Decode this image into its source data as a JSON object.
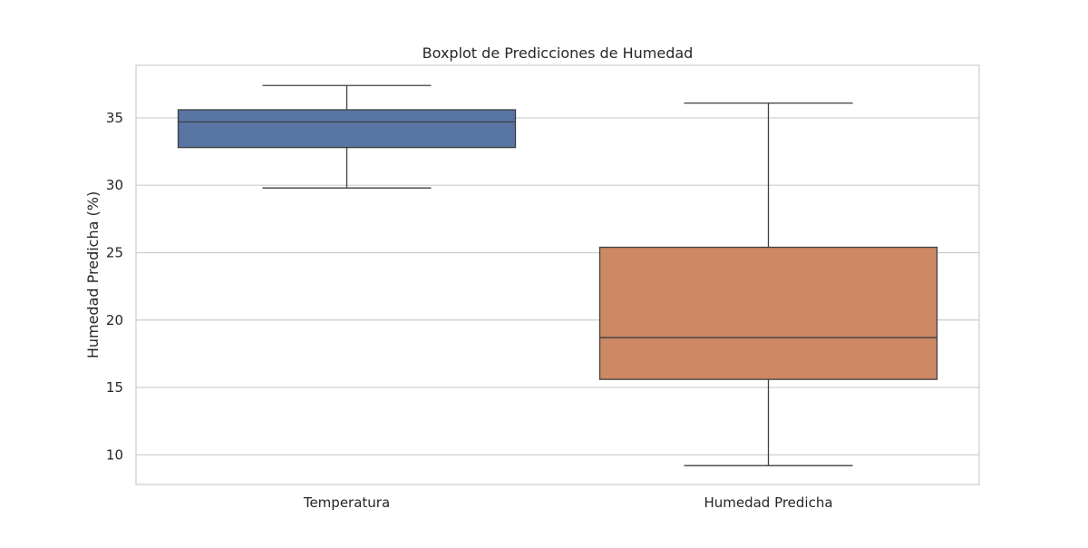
{
  "chart_data": {
    "type": "box",
    "title": "Boxplot de Predicciones de Humedad",
    "xlabel": "",
    "ylabel": "Humedad Predicha (%)",
    "ylim": [
      7.8,
      38.9
    ],
    "yticks": [
      10,
      15,
      20,
      25,
      30,
      35
    ],
    "grid": true,
    "categories": [
      "Temperatura",
      "Humedad Predicha"
    ],
    "boxes": [
      {
        "category": "Temperatura",
        "whisker_low": 29.8,
        "q1": 32.8,
        "median": 34.7,
        "q3": 35.6,
        "whisker_high": 37.4,
        "color": "#5875a4"
      },
      {
        "category": "Humedad Predicha",
        "whisker_low": 9.2,
        "q1": 15.6,
        "median": 18.7,
        "q3": 25.4,
        "whisker_high": 36.1,
        "color": "#cc8963"
      }
    ]
  }
}
